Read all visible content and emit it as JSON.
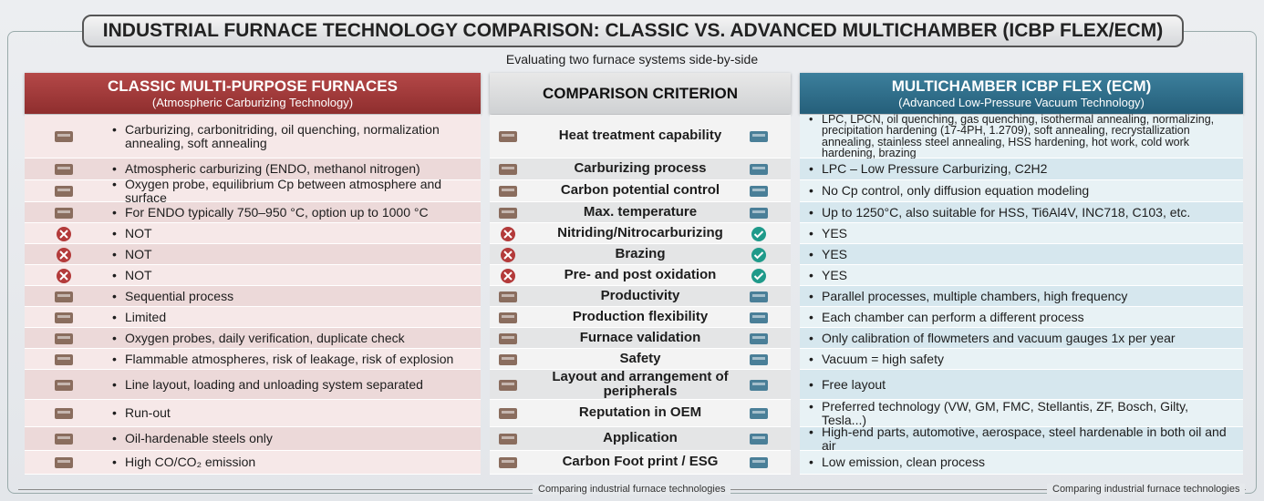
{
  "title": "INDUSTRIAL FURNACE TECHNOLOGY COMPARISON: CLASSIC VS. ADVANCED MULTICHAMBER (ICBP FLEX/ECM)",
  "subtitle": "Evaluating two furnace systems side-by-side",
  "columns": [
    {
      "title": "CLASSIC MULTI-PURPOSE FURNACES",
      "subtitle": "(Atmospheric Carburizing Technology)"
    },
    {
      "title": "COMPARISON CRITERION"
    },
    {
      "title": "MULTICHAMBER ICBP FLEX (ECM)",
      "subtitle": "(Advanced Low-Pressure Vacuum Technology)"
    }
  ],
  "rows": [
    {
      "classic": "Carburizing, carbonitriding, oil quenching, normalization annealing, soft annealing",
      "criterion": "Heat treatment capability",
      "advanced": "LPC, LPCN, oil quenching, gas quenching, isothermal annealing, normalizing, precipitation hardening (17-4PH, 1.2709), soft annealing, recrystallization annealing, stainless steel annealing, HSS hardening, hot work, cold work hardening, brazing"
    },
    {
      "classic": "Atmospheric carburizing (ENDO, methanol nitrogen)",
      "criterion": "Carburizing process",
      "advanced": "LPC – Low Pressure Carburizing, C2H2"
    },
    {
      "classic": "Oxygen probe, equilibrium Cp between atmosphere and surface",
      "criterion": "Carbon potential control",
      "advanced": "No Cp control, only diffusion equation modeling"
    },
    {
      "classic": "For ENDO typically 750–950 °C, option up to 1000 °C",
      "criterion": "Max. temperature",
      "advanced": "Up to 1250°C, also suitable for HSS, Ti6Al4V, INC718, C103, etc."
    },
    {
      "classic": "NOT",
      "criterion": "Nitriding/Nitrocarburizing",
      "advanced": "YES"
    },
    {
      "classic": "NOT",
      "criterion": "Brazing",
      "advanced": "YES"
    },
    {
      "classic": "NOT",
      "criterion": "Pre- and post oxidation",
      "advanced": "YES"
    },
    {
      "classic": "Sequential process",
      "criterion": "Productivity",
      "advanced": "Parallel processes, multiple chambers, high frequency"
    },
    {
      "classic": "Limited",
      "criterion": "Production flexibility",
      "advanced": "Each chamber can perform a different process"
    },
    {
      "classic": "Oxygen probes, daily verification, duplicate check",
      "criterion": "Furnace validation",
      "advanced": "Only calibration of flowmeters and vacuum gauges 1x per year"
    },
    {
      "classic": "Flammable atmospheres, risk of leakage, risk of explosion",
      "criterion": "Safety",
      "advanced": "Vacuum = high safety"
    },
    {
      "classic": "Line layout, loading and unloading system separated",
      "criterion": "Layout and arrangement of peripherals",
      "advanced": "Free layout"
    },
    {
      "classic": "Run-out",
      "criterion": "Reputation in OEM",
      "advanced": "Preferred technology (VW, GM, FMC, Stellantis, ZF, Bosch, Gilty, Tesla...)"
    },
    {
      "classic": "Oil-hardenable steels only",
      "criterion": "Application",
      "advanced": "High-end parts, automotive, aerospace, steel hardenable in both oil and air"
    },
    {
      "classic": "High CO/CO₂ emission",
      "criterion": "Carbon Foot print / ESG",
      "advanced": "Low emission, clean process"
    }
  ],
  "footer": [
    "Comparing industrial furnace technologies",
    "Comparing industrial furnace technologies"
  ]
}
